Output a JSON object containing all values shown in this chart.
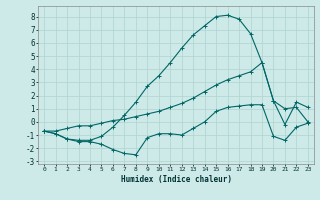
{
  "xlabel": "Humidex (Indice chaleur)",
  "background_color": "#ceeae8",
  "grid_color": "#aed4d0",
  "line_color": "#006666",
  "xlim": [
    -0.5,
    23.5
  ],
  "ylim": [
    -3.2,
    8.8
  ],
  "xticks": [
    0,
    1,
    2,
    3,
    4,
    5,
    6,
    7,
    8,
    9,
    10,
    11,
    12,
    13,
    14,
    15,
    16,
    17,
    18,
    19,
    20,
    21,
    22,
    23
  ],
  "yticks": [
    -3,
    -2,
    -1,
    0,
    1,
    2,
    3,
    4,
    5,
    6,
    7,
    8
  ],
  "series3_x": [
    0,
    1,
    2,
    3,
    4,
    5,
    6,
    7,
    8,
    9,
    10,
    11,
    12,
    13,
    14,
    15,
    16,
    17,
    18,
    19,
    20,
    21,
    22,
    23
  ],
  "series3_y": [
    -0.7,
    -0.9,
    -1.3,
    -1.4,
    -1.4,
    -1.1,
    -0.4,
    0.5,
    1.5,
    2.7,
    3.5,
    4.5,
    5.6,
    6.6,
    7.3,
    8.0,
    8.1,
    7.8,
    6.7,
    4.5,
    1.6,
    1.0,
    1.1,
    0.0
  ],
  "series2_x": [
    0,
    1,
    2,
    3,
    4,
    5,
    6,
    7,
    8,
    9,
    10,
    11,
    12,
    13,
    14,
    15,
    16,
    17,
    18,
    19,
    20,
    21,
    22,
    23
  ],
  "series2_y": [
    -0.7,
    -0.7,
    -0.5,
    -0.3,
    -0.3,
    -0.1,
    0.1,
    0.2,
    0.4,
    0.6,
    0.8,
    1.1,
    1.4,
    1.8,
    2.3,
    2.8,
    3.2,
    3.5,
    3.8,
    4.5,
    1.6,
    -0.2,
    1.5,
    1.1
  ],
  "series1_x": [
    0,
    1,
    2,
    3,
    4,
    5,
    6,
    7,
    8,
    9,
    10,
    11,
    12,
    13,
    14,
    15,
    16,
    17,
    18,
    19,
    20,
    21,
    22,
    23
  ],
  "series1_y": [
    -0.7,
    -0.9,
    -1.3,
    -1.5,
    -1.5,
    -1.7,
    -2.1,
    -2.4,
    -2.5,
    -1.2,
    -0.9,
    -0.9,
    -1.0,
    -0.5,
    0.0,
    0.8,
    1.1,
    1.2,
    1.3,
    1.3,
    -1.1,
    -1.4,
    -0.4,
    -0.1
  ]
}
